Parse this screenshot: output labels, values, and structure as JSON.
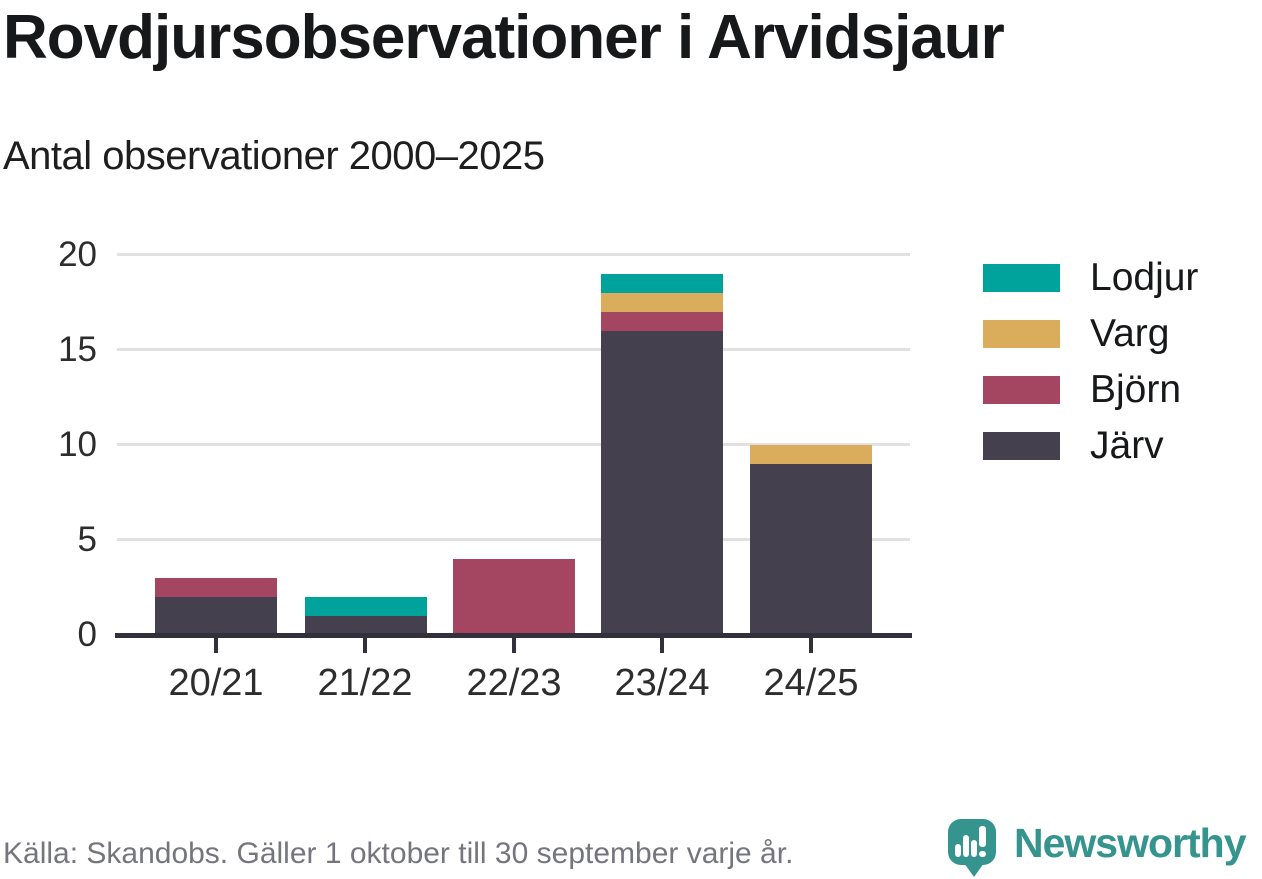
{
  "title": "Rovdjursobservationer i Arvidsjaur",
  "subtitle": "Antal observationer 2000–2025",
  "footer": {
    "source": "Källa: Skandobs. Gäller 1 oktober till 30 september varje år.",
    "brand": "Newsworthy"
  },
  "colors": {
    "lodjur_teal": "#00A39B",
    "varg_gold": "#D9AD5B",
    "bjorn_berry": "#A44561",
    "jarv_slate": "#45404E",
    "axis": "#32313B",
    "gridline": "#E1E1E1",
    "tick_text": "#2D2D2D",
    "title_text": "#16181A",
    "footer_text": "#75757E",
    "brand_teal": "#35948D"
  },
  "chart_data": {
    "type": "bar",
    "stacked": true,
    "title": "Rovdjursobservationer i Arvidsjaur",
    "subtitle": "Antal observationer 2000–2025",
    "categories": [
      "20/21",
      "21/22",
      "22/23",
      "23/24",
      "24/25"
    ],
    "series": [
      {
        "name": "Lodjur",
        "color": "#00A39B",
        "values": [
          0,
          1,
          0,
          1,
          0
        ]
      },
      {
        "name": "Varg",
        "color": "#D9AD5B",
        "values": [
          0,
          0,
          0,
          1,
          1
        ]
      },
      {
        "name": "Björn",
        "color": "#A44561",
        "values": [
          1,
          0,
          4,
          1,
          0
        ]
      },
      {
        "name": "Järv",
        "color": "#45404E",
        "values": [
          2,
          1,
          0,
          16,
          9
        ]
      }
    ],
    "stack_order_bottom_to_top": [
      "Järv",
      "Björn",
      "Varg",
      "Lodjur"
    ],
    "totals": [
      3,
      2,
      4,
      19,
      10
    ],
    "xlabel": "",
    "ylabel": "",
    "yticks": [
      0,
      5,
      10,
      15,
      20
    ],
    "ylim": [
      0,
      20
    ],
    "legend_position": "right",
    "grid": "horizontal"
  }
}
